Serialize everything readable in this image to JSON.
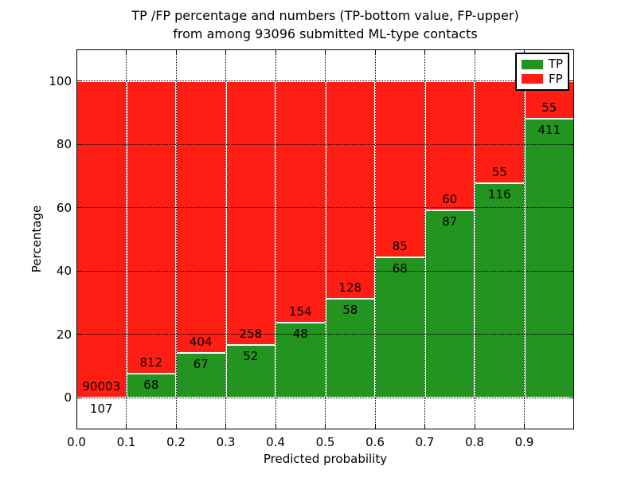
{
  "chart_data": {
    "type": "bar",
    "stacked": true,
    "title_lines": [
      "TP /FP percentage and numbers (TP-bottom value, FP-upper)",
      "from among 93096 submitted ML-type contacts"
    ],
    "total_contacts": 93096,
    "xlabel": "Predicted probability",
    "ylabel": "Percentage",
    "xlim": [
      0.0,
      1.0
    ],
    "ylim": [
      -10,
      110
    ],
    "grid": true,
    "gridline_style": "dotted",
    "bin_edges": [
      0.0,
      0.1,
      0.2,
      0.3,
      0.4,
      0.5,
      0.6,
      0.7,
      0.8,
      0.9,
      1.0
    ],
    "x_tick_labels": [
      "0.0",
      "0.1",
      "0.2",
      "0.3",
      "0.4",
      "0.5",
      "0.6",
      "0.7",
      "0.8",
      "0.9"
    ],
    "y_tick_values": [
      0,
      20,
      40,
      60,
      80,
      100
    ],
    "series": [
      {
        "name": "TP",
        "role": "bottom",
        "color": "#22941f",
        "counts": [
          107,
          68,
          67,
          52,
          48,
          58,
          68,
          87,
          116,
          411
        ]
      },
      {
        "name": "FP",
        "role": "top",
        "color": "#ff1e14",
        "counts": [
          90003,
          812,
          404,
          258,
          154,
          128,
          85,
          60,
          55,
          55
        ]
      }
    ],
    "tp_pct": [
      0.12,
      7.73,
      14.23,
      16.77,
      23.76,
      31.18,
      44.44,
      59.18,
      67.84,
      88.2
    ],
    "bar_totals_are_100_percent": true,
    "legend": {
      "position": "upper right",
      "entries": [
        {
          "label": "TP",
          "color": "#22941f"
        },
        {
          "label": "FP",
          "color": "#ff1e14"
        }
      ]
    }
  }
}
